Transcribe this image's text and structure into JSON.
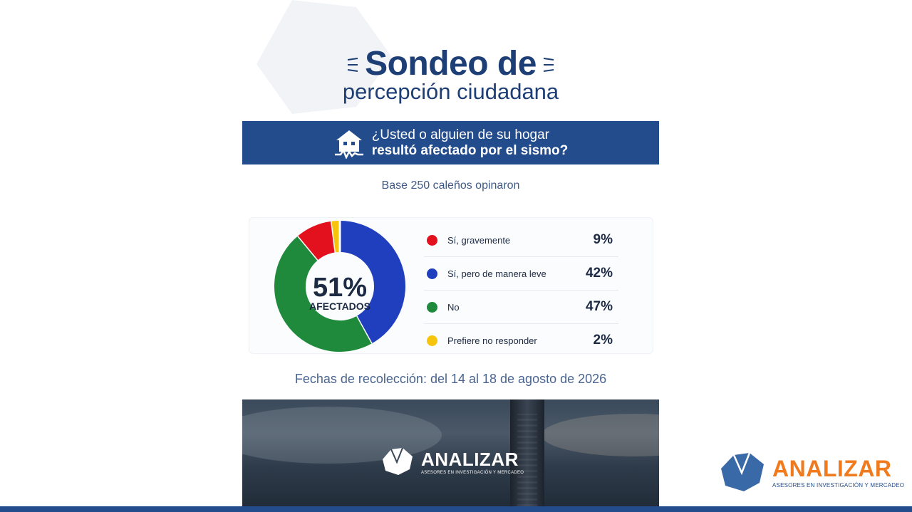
{
  "title": {
    "line1": "Sondeo de",
    "line2": "percepción ciudadana"
  },
  "question": {
    "line1": "¿Usted o alguien de su hogar",
    "line2": "resultó afectado por el sismo?"
  },
  "base_text": "Base 250 caleños opinaron",
  "donut_center": {
    "value": "51%",
    "label": "AFECTADOS"
  },
  "chart_data": {
    "type": "pie",
    "categories": [
      "Sí, gravemente",
      "Sí, pero de manera leve",
      "No",
      "Prefiere no responder"
    ],
    "values": [
      9,
      42,
      47,
      2
    ],
    "value_labels": [
      "9%",
      "42%",
      "47%",
      "2%"
    ],
    "colors": [
      "#e3101e",
      "#1f3fbf",
      "#1f8a3c",
      "#f6c40c"
    ],
    "donut": true,
    "start_order": [
      "Sí, pero de manera leve",
      "No",
      "Sí, gravemente",
      "Prefiere no responder"
    ]
  },
  "dates_text": "Fechas de recolección: del 14 al 18 de agosto de 2026",
  "brand": {
    "name": "ANALIZAR",
    "tagline": "ASESORES EN INVESTIGACIÓN Y MERCADEO",
    "orange": "#f07b1f",
    "navy": "#234c8c"
  },
  "icons": {
    "house": "house-crack-icon",
    "logo": "faceted-polygon-logo-icon"
  }
}
